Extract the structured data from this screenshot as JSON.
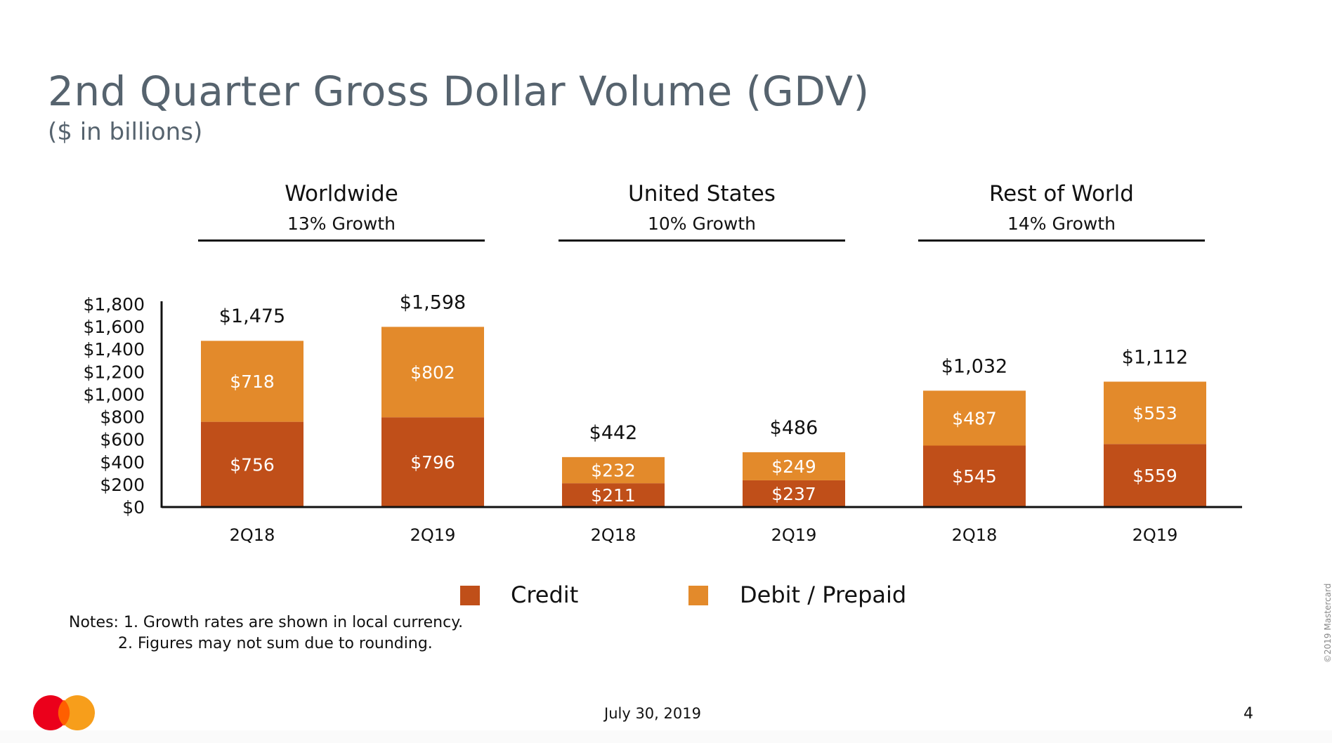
{
  "title": "2nd Quarter Gross Dollar Volume (GDV)",
  "subtitle": "($ in billions)",
  "regions": [
    {
      "name": "Worldwide",
      "growth": "13% Growth"
    },
    {
      "name": "United States",
      "growth": "10% Growth"
    },
    {
      "name": "Rest of World",
      "growth": "14% Growth"
    }
  ],
  "legend": {
    "credit": "Credit",
    "debit": "Debit / Prepaid"
  },
  "notes": {
    "line1": "Notes: 1.  Growth rates are shown in local currency.",
    "line2": "2.  Figures may not sum due to rounding."
  },
  "footer": {
    "date": "July 30, 2019",
    "page": "4",
    "copyright": "©2019 Mastercard"
  },
  "colors": {
    "credit": "#c04f19",
    "debit": "#e38a2b",
    "title": "#56636e",
    "logo_red": "#eb001b",
    "logo_orange": "#f79e1b"
  },
  "chart_data": {
    "type": "bar",
    "stacked": true,
    "categories": [
      "2Q18",
      "2Q19",
      "2Q18",
      "2Q19",
      "2Q18",
      "2Q19"
    ],
    "groups": [
      "Worldwide",
      "Worldwide",
      "United States",
      "United States",
      "Rest of World",
      "Rest of World"
    ],
    "series": [
      {
        "name": "Credit",
        "values": [
          756,
          796,
          211,
          237,
          545,
          559
        ],
        "labels": [
          "$756",
          "$796",
          "$211",
          "$237",
          "$545",
          "$559"
        ]
      },
      {
        "name": "Debit / Prepaid",
        "values": [
          718,
          802,
          232,
          249,
          487,
          553
        ],
        "labels": [
          "$718",
          "$802",
          "$232",
          "$249",
          "$487",
          "$553"
        ]
      }
    ],
    "totals": [
      1475,
      1598,
      442,
      486,
      1032,
      1112
    ],
    "total_labels": [
      "$1,475",
      "$1,598",
      "$442",
      "$486",
      "$1,032",
      "$1,112"
    ],
    "y_ticks": [
      "$0",
      "$200",
      "$400",
      "$600",
      "$800",
      "$1,000",
      "$1,200",
      "$1,400",
      "$1,600",
      "$1,800"
    ],
    "ylim": [
      0,
      1800
    ],
    "grid": false,
    "legend_position": "bottom-center"
  }
}
